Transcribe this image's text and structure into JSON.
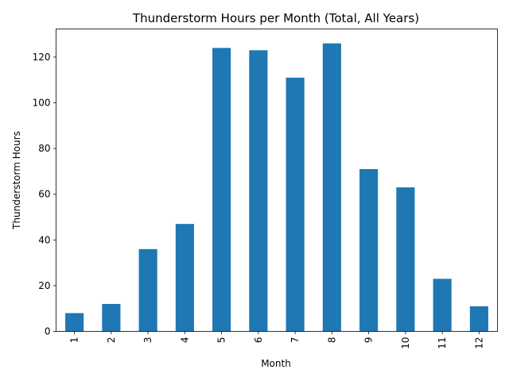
{
  "chart_data": {
    "type": "bar",
    "title": "Thunderstorm Hours per Month (Total, All Years)",
    "xlabel": "Month",
    "ylabel": "Thunderstorm Hours",
    "categories": [
      "1",
      "2",
      "3",
      "4",
      "5",
      "6",
      "7",
      "8",
      "9",
      "10",
      "11",
      "12"
    ],
    "values": [
      8,
      12,
      36,
      47,
      124,
      123,
      111,
      126,
      71,
      63,
      23,
      11
    ],
    "ylim": [
      0,
      132.3
    ],
    "yticks": [
      0,
      20,
      40,
      60,
      80,
      100,
      120
    ],
    "bar_color": "#1f77b4",
    "grid": false,
    "legend": false
  }
}
